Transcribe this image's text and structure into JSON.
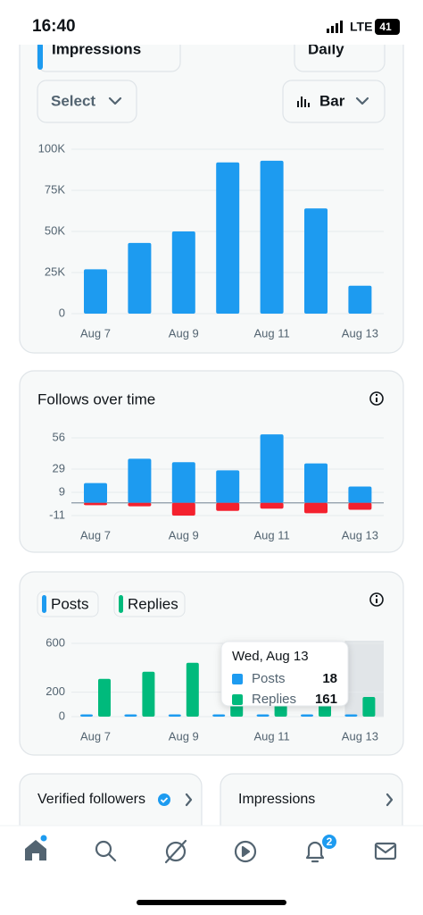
{
  "status_bar": {
    "time": "16:40",
    "network": "LTE",
    "battery": "41"
  },
  "controls": {
    "metric": "Impressions",
    "period": "Daily",
    "select": "Select",
    "chart_style": "Bar"
  },
  "chart_data": [
    {
      "type": "bar",
      "categories": [
        "Aug 7",
        null,
        "Aug 9",
        null,
        "Aug 11",
        null,
        "Aug 13"
      ],
      "values": [
        27000,
        43000,
        50000,
        92000,
        93000,
        64000,
        17000
      ],
      "color": "#1d9bf0",
      "ylim": [
        0,
        100000
      ],
      "yticks": [
        0,
        {
          "value": 25000,
          "label": "25K"
        },
        {
          "value": 50000,
          "label": "50K"
        },
        {
          "value": 75000,
          "label": "75K"
        },
        {
          "value": 100000,
          "label": "100K"
        }
      ],
      "grid": true
    },
    {
      "type": "bar",
      "title": "Follows over time",
      "categories": [
        "Aug 7",
        null,
        "Aug 9",
        null,
        "Aug 11",
        null,
        "Aug 13"
      ],
      "series": [
        {
          "color": "#1d9bf0",
          "values": [
            17,
            38,
            35,
            28,
            59,
            34,
            14
          ]
        },
        {
          "color": "#f4212e",
          "values": [
            -2,
            -3,
            -11,
            -7,
            -5,
            -9,
            -6
          ]
        }
      ],
      "ylim": [
        -13,
        60
      ],
      "yticks": [
        -11,
        9,
        29,
        56
      ],
      "grid": true
    },
    {
      "type": "grouped_bar",
      "categories": [
        "Aug 7",
        null,
        "Aug 9",
        null,
        "Aug 11",
        null,
        "Aug 13"
      ],
      "series": [
        {
          "name": "Posts",
          "color": "#1d9bf0",
          "values": [
            18,
            18,
            18,
            18,
            18,
            18,
            18
          ]
        },
        {
          "name": "Replies",
          "color": "#00ba7c",
          "values": [
            309,
            368,
            441,
            130,
            150,
            120,
            161
          ]
        }
      ],
      "ylim": [
        0,
        600
      ],
      "yticks": [
        0,
        200,
        600
      ],
      "grid": true,
      "highlight_index": 6,
      "tooltip": {
        "title": "Wed, Aug 13",
        "rows": [
          {
            "label": "Posts",
            "value": "18"
          },
          {
            "label": "Replies",
            "value": "161"
          }
        ]
      }
    }
  ],
  "cards": [
    "Verified followers",
    "Impressions"
  ],
  "nav": {
    "notifications_badge": "2"
  }
}
